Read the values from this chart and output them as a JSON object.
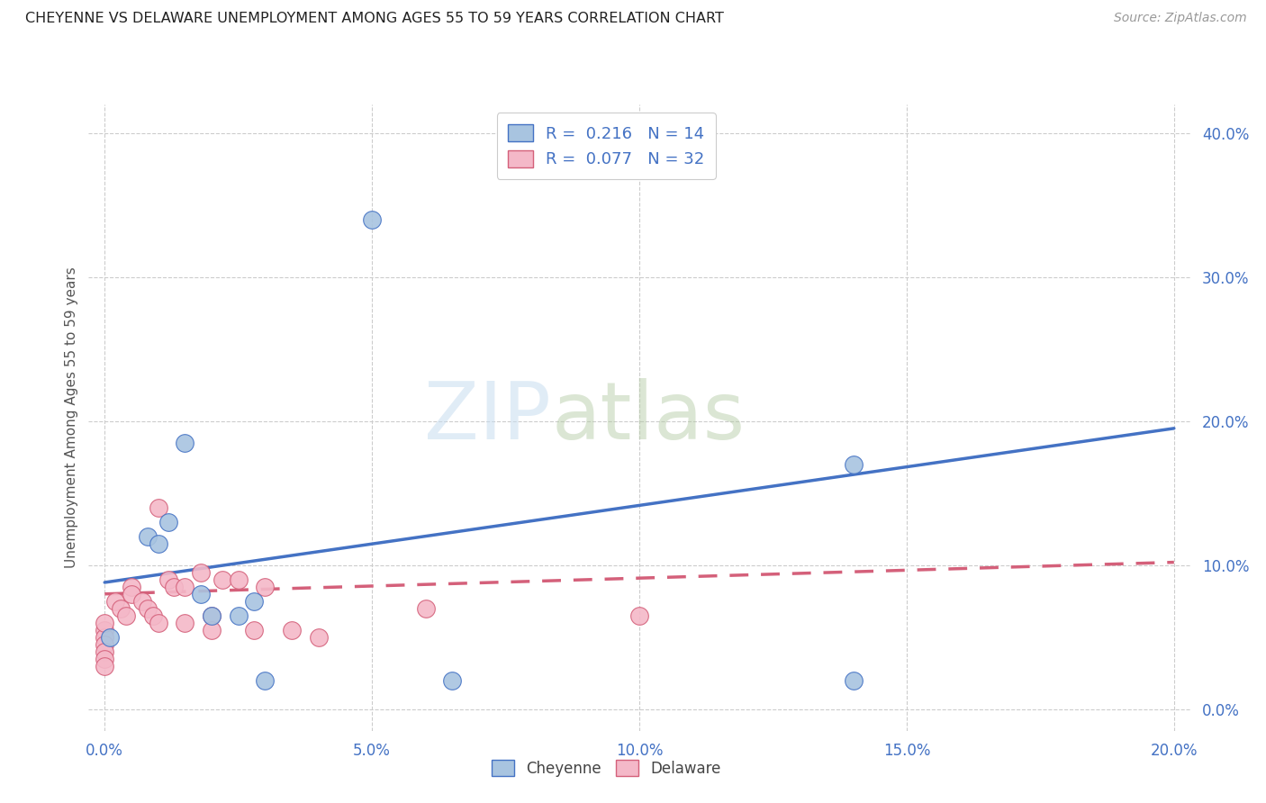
{
  "title": "CHEYENNE VS DELAWARE UNEMPLOYMENT AMONG AGES 55 TO 59 YEARS CORRELATION CHART",
  "source": "Source: ZipAtlas.com",
  "xlabel_vals": [
    0.0,
    0.05,
    0.1,
    0.15,
    0.2
  ],
  "ylabel_vals": [
    0.0,
    0.1,
    0.2,
    0.3,
    0.4
  ],
  "ylabel_label": "Unemployment Among Ages 55 to 59 years",
  "cheyenne_R": 0.216,
  "cheyenne_N": 14,
  "delaware_R": 0.077,
  "delaware_N": 32,
  "cheyenne_color": "#a8c4e0",
  "cheyenne_line_color": "#4472c4",
  "delaware_color": "#f4b8c8",
  "delaware_line_color": "#d4607a",
  "watermark_zip": "ZIP",
  "watermark_atlas": "atlas",
  "cheyenne_x": [
    0.001,
    0.008,
    0.01,
    0.012,
    0.015,
    0.018,
    0.02,
    0.025,
    0.028,
    0.03,
    0.05,
    0.065,
    0.14,
    0.14
  ],
  "cheyenne_y": [
    0.05,
    0.12,
    0.115,
    0.13,
    0.185,
    0.08,
    0.065,
    0.065,
    0.075,
    0.02,
    0.34,
    0.02,
    0.17,
    0.02
  ],
  "delaware_x": [
    0.0,
    0.0,
    0.0,
    0.0,
    0.0,
    0.0,
    0.0,
    0.002,
    0.003,
    0.004,
    0.005,
    0.005,
    0.007,
    0.008,
    0.009,
    0.01,
    0.01,
    0.012,
    0.013,
    0.015,
    0.015,
    0.018,
    0.02,
    0.02,
    0.022,
    0.025,
    0.028,
    0.03,
    0.035,
    0.04,
    0.06,
    0.1
  ],
  "delaware_y": [
    0.055,
    0.05,
    0.045,
    0.04,
    0.035,
    0.03,
    0.06,
    0.075,
    0.07,
    0.065,
    0.085,
    0.08,
    0.075,
    0.07,
    0.065,
    0.14,
    0.06,
    0.09,
    0.085,
    0.085,
    0.06,
    0.095,
    0.065,
    0.055,
    0.09,
    0.09,
    0.055,
    0.085,
    0.055,
    0.05,
    0.07,
    0.065
  ],
  "cheyenne_line_x": [
    0.0,
    0.2
  ],
  "cheyenne_line_y": [
    0.088,
    0.195
  ],
  "delaware_line_x": [
    0.0,
    0.2
  ],
  "delaware_line_y": [
    0.08,
    0.102
  ],
  "xlim": [
    -0.003,
    0.203
  ],
  "ylim": [
    -0.015,
    0.42
  ]
}
